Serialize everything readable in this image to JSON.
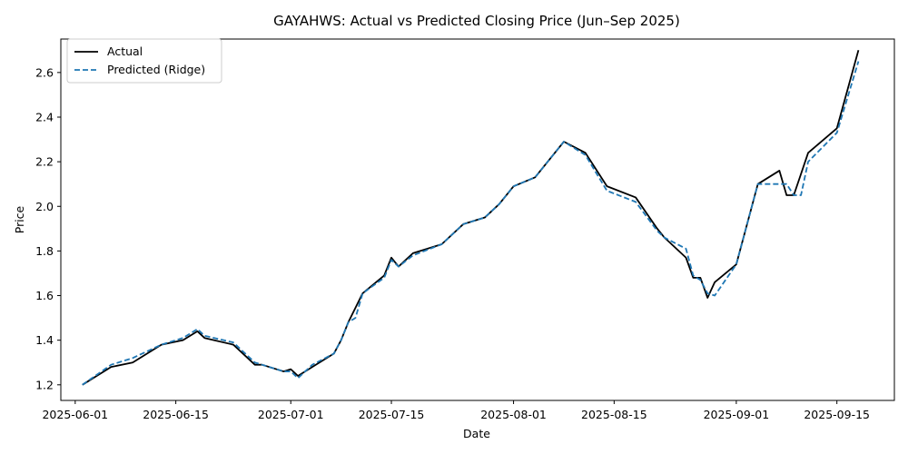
{
  "chart_data": {
    "type": "line",
    "title": "GAYAHWS: Actual vs Predicted Closing Price (Jun–Sep 2025)",
    "xlabel": "Date",
    "ylabel": "Price",
    "x_ticks": [
      "2025-06-01",
      "2025-06-15",
      "2025-07-01",
      "2025-07-15",
      "2025-08-01",
      "2025-08-15",
      "2025-09-01",
      "2025-09-15"
    ],
    "y_ticks": [
      1.2,
      1.4,
      1.6,
      1.8,
      2.0,
      2.2,
      2.4,
      2.6
    ],
    "xlim": [
      "2025-05-30",
      "2025-09-23"
    ],
    "ylim": [
      1.13,
      2.75
    ],
    "grid": false,
    "legend_position": "top-left",
    "series": [
      {
        "name": "Actual",
        "color": "#000000",
        "style": "solid",
        "points": [
          [
            "2025-06-02",
            1.2
          ],
          [
            "2025-06-06",
            1.28
          ],
          [
            "2025-06-09",
            1.3
          ],
          [
            "2025-06-13",
            1.38
          ],
          [
            "2025-06-16",
            1.4
          ],
          [
            "2025-06-18",
            1.44
          ],
          [
            "2025-06-19",
            1.41
          ],
          [
            "2025-06-23",
            1.38
          ],
          [
            "2025-06-26",
            1.29
          ],
          [
            "2025-06-27",
            1.29
          ],
          [
            "2025-06-30",
            1.26
          ],
          [
            "2025-07-01",
            1.27
          ],
          [
            "2025-07-02",
            1.24
          ],
          [
            "2025-07-04",
            1.28
          ],
          [
            "2025-07-07",
            1.34
          ],
          [
            "2025-07-08",
            1.4
          ],
          [
            "2025-07-09",
            1.48
          ],
          [
            "2025-07-11",
            1.61
          ],
          [
            "2025-07-14",
            1.69
          ],
          [
            "2025-07-15",
            1.77
          ],
          [
            "2025-07-16",
            1.73
          ],
          [
            "2025-07-18",
            1.79
          ],
          [
            "2025-07-22",
            1.83
          ],
          [
            "2025-07-25",
            1.92
          ],
          [
            "2025-07-28",
            1.95
          ],
          [
            "2025-07-30",
            2.01
          ],
          [
            "2025-08-01",
            2.09
          ],
          [
            "2025-08-04",
            2.13
          ],
          [
            "2025-08-08",
            2.29
          ],
          [
            "2025-08-11",
            2.24
          ],
          [
            "2025-08-14",
            2.09
          ],
          [
            "2025-08-18",
            2.04
          ],
          [
            "2025-08-21",
            1.9
          ],
          [
            "2025-08-22",
            1.86
          ],
          [
            "2025-08-25",
            1.77
          ],
          [
            "2025-08-26",
            1.68
          ],
          [
            "2025-08-27",
            1.68
          ],
          [
            "2025-08-28",
            1.59
          ],
          [
            "2025-08-29",
            1.66
          ],
          [
            "2025-09-01",
            1.74
          ],
          [
            "2025-09-04",
            2.1
          ],
          [
            "2025-09-07",
            2.16
          ],
          [
            "2025-09-08",
            2.05
          ],
          [
            "2025-09-09",
            2.05
          ],
          [
            "2025-09-11",
            2.24
          ],
          [
            "2025-09-15",
            2.35
          ],
          [
            "2025-09-18",
            2.7
          ]
        ]
      },
      {
        "name": "Predicted (Ridge)",
        "color": "#1f77b4",
        "style": "dashed",
        "points": [
          [
            "2025-06-02",
            1.2
          ],
          [
            "2025-06-06",
            1.29
          ],
          [
            "2025-06-09",
            1.32
          ],
          [
            "2025-06-13",
            1.38
          ],
          [
            "2025-06-16",
            1.41
          ],
          [
            "2025-06-18",
            1.45
          ],
          [
            "2025-06-19",
            1.42
          ],
          [
            "2025-06-23",
            1.39
          ],
          [
            "2025-06-26",
            1.3
          ],
          [
            "2025-06-27",
            1.29
          ],
          [
            "2025-06-30",
            1.26
          ],
          [
            "2025-07-01",
            1.26
          ],
          [
            "2025-07-02",
            1.23
          ],
          [
            "2025-07-04",
            1.29
          ],
          [
            "2025-07-07",
            1.34
          ],
          [
            "2025-07-08",
            1.4
          ],
          [
            "2025-07-09",
            1.48
          ],
          [
            "2025-07-10",
            1.5
          ],
          [
            "2025-07-11",
            1.61
          ],
          [
            "2025-07-14",
            1.68
          ],
          [
            "2025-07-15",
            1.76
          ],
          [
            "2025-07-16",
            1.73
          ],
          [
            "2025-07-18",
            1.78
          ],
          [
            "2025-07-22",
            1.83
          ],
          [
            "2025-07-25",
            1.92
          ],
          [
            "2025-07-28",
            1.95
          ],
          [
            "2025-07-30",
            2.01
          ],
          [
            "2025-08-01",
            2.09
          ],
          [
            "2025-08-04",
            2.13
          ],
          [
            "2025-08-08",
            2.29
          ],
          [
            "2025-08-11",
            2.23
          ],
          [
            "2025-08-14",
            2.07
          ],
          [
            "2025-08-18",
            2.02
          ],
          [
            "2025-08-21",
            1.89
          ],
          [
            "2025-08-22",
            1.86
          ],
          [
            "2025-08-25",
            1.81
          ],
          [
            "2025-08-26",
            1.69
          ],
          [
            "2025-08-27",
            1.67
          ],
          [
            "2025-08-28",
            1.61
          ],
          [
            "2025-08-29",
            1.6
          ],
          [
            "2025-09-01",
            1.74
          ],
          [
            "2025-09-04",
            2.1
          ],
          [
            "2025-09-07",
            2.1
          ],
          [
            "2025-09-08",
            2.1
          ],
          [
            "2025-09-09",
            2.05
          ],
          [
            "2025-09-10",
            2.05
          ],
          [
            "2025-09-11",
            2.2
          ],
          [
            "2025-09-15",
            2.33
          ],
          [
            "2025-09-18",
            2.65
          ]
        ]
      }
    ]
  }
}
